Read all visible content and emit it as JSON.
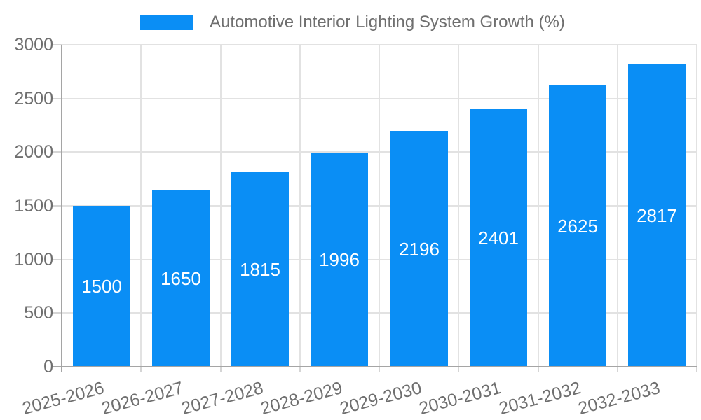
{
  "chart_data": {
    "type": "bar",
    "title": "",
    "series_name": "Automotive Interior Lighting System Growth (%)",
    "categories": [
      "2025-2026",
      "2026-2027",
      "2027-2028",
      "2028-2029",
      "2029-2030",
      "2030-2031",
      "2031-2032",
      "2032-2033"
    ],
    "values": [
      1500,
      1650,
      1815,
      1996,
      2196,
      2401,
      2625,
      2817
    ],
    "ylim": [
      0,
      3000
    ],
    "yticks": [
      0,
      500,
      1000,
      1500,
      2000,
      2500,
      3000
    ],
    "legend_position": "top",
    "grid": true,
    "bar_color": "#0a8ef5",
    "value_label_color": "#ffffff",
    "axis_text_color": "#6f6f6f",
    "grid_color": "#e2e2e2",
    "axis_line_color": "#a5a5a5",
    "tick_color": "#d5d5d5"
  }
}
